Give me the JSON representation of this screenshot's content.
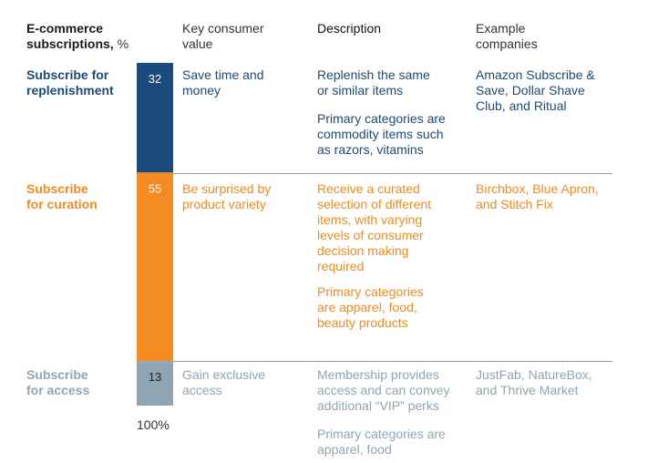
{
  "header": {
    "col1_line1": "E-commerce",
    "col1_line2_bold": "subscriptions,",
    "col1_line2_unit": " %",
    "col2": "Key consumer\nvalue",
    "col3": "Description",
    "col4": "Example\ncompanies"
  },
  "colors": {
    "replenishment": "#1b4a7c",
    "curation": "#f48b21",
    "access": "#8fa5b3"
  },
  "rows": [
    {
      "label": "Subscribe for\nreplenishment",
      "value_text": "32",
      "key_value": "Save time and\nmoney",
      "description": "Replenish the same\nor similar items",
      "categories": "Primary categories are\ncommodity items such\nas razors, vitamins",
      "examples": "Amazon Subscribe &\nSave, Dollar Shave\nClub, and Ritual"
    },
    {
      "label": "Subscribe\nfor curation",
      "value_text": "55",
      "key_value": "Be surprised by\nproduct variety",
      "description": "Receive a curated\nselection of different\nitems, with varying\nlevels of consumer\ndecision making\nrequired",
      "categories": "Primary categories\nare apparel, food,\nbeauty products",
      "examples": "Birchbox, Blue Apron,\nand Stitch Fix"
    },
    {
      "label": "Subscribe\nfor access",
      "value_text": "13",
      "key_value": "Gain exclusive\naccess",
      "description": "Membership provides\naccess and can convey\nadditional “VIP” perks",
      "categories": "Primary categories are\napparel, food",
      "examples": "JustFab, NatureBox,\nand Thrive Market"
    }
  ],
  "total_label": "100%",
  "chart_data": {
    "type": "bar",
    "stacked": true,
    "orientation": "vertical",
    "title": "E-commerce subscriptions, %",
    "categories": [
      "Subscribe for replenishment",
      "Subscribe for curation",
      "Subscribe for access"
    ],
    "values": [
      32,
      55,
      13
    ],
    "total": 100,
    "ylim": [
      0,
      100
    ],
    "xlabel": "",
    "ylabel": ""
  }
}
